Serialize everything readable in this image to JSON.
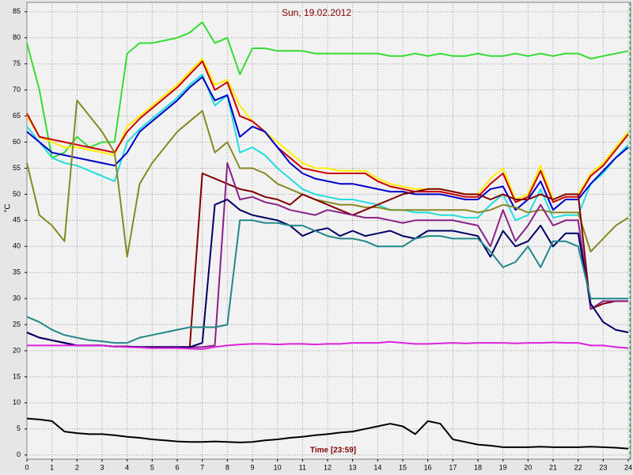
{
  "chart_data": {
    "type": "line",
    "title": "Sun, 19.02.2012",
    "x_label": "Time [23:59]",
    "y_label": "°C",
    "xlim": [
      0,
      24
    ],
    "ylim": [
      -0.8,
      86.8
    ],
    "xticks": [
      0,
      1,
      2,
      3,
      4,
      5,
      6,
      7,
      8,
      9,
      10,
      11,
      12,
      13,
      14,
      15,
      16,
      17,
      18,
      19,
      20,
      21,
      22,
      23,
      24
    ],
    "yticks": [
      0,
      5,
      10,
      15,
      20,
      25,
      30,
      35,
      40,
      45,
      50,
      55,
      60,
      65,
      70,
      75,
      80,
      85
    ],
    "grid": true,
    "x": [
      0,
      0.5,
      1,
      1.5,
      2,
      2.5,
      3,
      3.5,
      4,
      4.5,
      5,
      5.5,
      6,
      6.5,
      7,
      7.5,
      8,
      8.5,
      9,
      9.5,
      10,
      10.5,
      11,
      11.5,
      12,
      12.5,
      13,
      13.5,
      14,
      14.5,
      15,
      15.5,
      16,
      16.5,
      17,
      17.5,
      18,
      18.5,
      19,
      19.5,
      20,
      20.5,
      21,
      21.5,
      22,
      22.5,
      23,
      23.5,
      24
    ],
    "series": [
      {
        "color": "#33dd33",
        "values": [
          79,
          70,
          57,
          58,
          61,
          59,
          60,
          60,
          77,
          79,
          79,
          79.5,
          80,
          81,
          83,
          79,
          80,
          73,
          78,
          78,
          77.5,
          77.5,
          77.5,
          77,
          77,
          77,
          77,
          77,
          77,
          76.5,
          76.5,
          77,
          76.5,
          77,
          76.5,
          76.5,
          77,
          76.5,
          76.5,
          77,
          76.5,
          77,
          76.5,
          77,
          77,
          76,
          76.5,
          77,
          77.5
        ]
      },
      {
        "color": "#ffee00",
        "values": [
          65,
          61,
          60,
          59,
          59,
          58.5,
          58,
          57.5,
          63,
          65,
          67,
          69,
          71,
          73.5,
          76,
          71,
          72,
          67,
          64,
          62,
          60,
          58,
          56,
          55,
          55,
          54.5,
          54.5,
          54.5,
          53,
          52,
          51.5,
          51,
          51,
          51,
          50.5,
          50,
          50,
          53,
          55,
          49,
          50,
          55.5,
          49,
          50,
          50,
          54,
          56,
          59,
          62
        ]
      },
      {
        "color": "#cc0000",
        "values": [
          65.5,
          61,
          60.5,
          60,
          59.5,
          59,
          58.5,
          58,
          62,
          64.5,
          66.5,
          68.5,
          70.5,
          73,
          75.5,
          70,
          71.5,
          65,
          64,
          62,
          59,
          57,
          55,
          54.5,
          54,
          54,
          54,
          54,
          52.5,
          51.5,
          51,
          50.5,
          50.5,
          50.5,
          50,
          49.5,
          49.5,
          52,
          54,
          48.5,
          49.5,
          54.5,
          48.5,
          49.5,
          49.5,
          53.5,
          55.5,
          58.5,
          61.5
        ]
      },
      {
        "color": "#22dddd",
        "values": [
          63,
          60,
          57,
          56,
          55.5,
          54.5,
          53.5,
          52.5,
          60,
          62.5,
          64.5,
          66.5,
          68.5,
          71,
          73,
          67,
          69,
          58,
          59,
          57.5,
          55,
          53,
          51,
          50,
          49.5,
          49,
          49,
          48.5,
          48,
          47,
          47,
          46.5,
          46.5,
          46,
          46,
          45.5,
          45.5,
          48,
          50,
          45,
          46,
          51,
          45.5,
          46,
          46,
          52,
          54,
          57,
          59.5
        ]
      },
      {
        "color": "#0000cc",
        "values": [
          62,
          60,
          58,
          57.5,
          57,
          56.5,
          56,
          55.5,
          58,
          62,
          64,
          66,
          68,
          70.5,
          72.5,
          68,
          69,
          61,
          63,
          62,
          59,
          56,
          54,
          53,
          52.5,
          52,
          52,
          51.5,
          51,
          50.5,
          50.5,
          50,
          50,
          50,
          49.5,
          49,
          49,
          51,
          51.5,
          47,
          49,
          52.5,
          47,
          49,
          49,
          52,
          54.5,
          57,
          59
        ]
      },
      {
        "color": "#888822",
        "values": [
          56,
          46,
          44,
          41,
          68,
          65,
          62,
          58,
          38,
          52,
          56,
          59,
          62,
          64,
          66,
          58,
          60,
          55,
          55,
          54,
          52,
          51,
          50,
          49,
          48.5,
          48,
          48,
          47.5,
          47.5,
          47,
          47,
          47,
          47,
          47,
          47,
          47,
          46.5,
          47,
          48,
          47.5,
          46.5,
          47,
          46.5,
          46.5,
          46.5,
          39,
          41.5,
          44,
          45.5
        ]
      },
      {
        "color": "#800000",
        "values": [
          23.5,
          22.5,
          22,
          21.5,
          21,
          21,
          21,
          20.8,
          20.8,
          20.7,
          20.7,
          20.7,
          20.7,
          20.7,
          54,
          53,
          52,
          51,
          50.5,
          49.5,
          49,
          48,
          50,
          49,
          48,
          47,
          46,
          47,
          48,
          49,
          50,
          50.5,
          51,
          51,
          50.5,
          50,
          50,
          49,
          50,
          49,
          49,
          50,
          49,
          50,
          50,
          28,
          29,
          29.5,
          29.5
        ]
      },
      {
        "color": "#882288",
        "values": [
          23.5,
          22.5,
          22,
          21.5,
          21,
          21,
          21,
          20.8,
          20.8,
          20.7,
          20.7,
          20.7,
          20.7,
          20.7,
          20.7,
          21,
          56,
          49,
          49.5,
          48.5,
          48,
          47,
          46.5,
          46,
          47,
          46.5,
          46,
          45.5,
          45.5,
          45,
          44.5,
          45,
          45,
          45,
          45,
          44.5,
          44,
          40,
          47,
          41,
          44,
          48,
          44,
          45,
          45,
          28,
          29.5,
          29.5,
          29.5
        ]
      },
      {
        "color": "#000066",
        "values": [
          23.5,
          22.5,
          22,
          21.5,
          21,
          21,
          21,
          20.8,
          20.8,
          20.7,
          20.7,
          20.7,
          20.7,
          20.7,
          21.5,
          48,
          49,
          47,
          46,
          45.5,
          45,
          44,
          42,
          43,
          43.5,
          42,
          43,
          42,
          42.5,
          43,
          42,
          41.5,
          43,
          43,
          43,
          42.5,
          42,
          38,
          43,
          40,
          41,
          44,
          40,
          42.5,
          42.5,
          29,
          25.5,
          24,
          23.5
        ]
      },
      {
        "color": "#228888",
        "values": [
          26.5,
          25.5,
          24,
          23,
          22.5,
          22,
          21.8,
          21.5,
          21.5,
          22.5,
          23,
          23.5,
          24,
          24.5,
          24.5,
          24.5,
          25,
          45,
          45,
          44.5,
          44.5,
          44,
          44,
          43,
          42,
          41.5,
          41.5,
          41,
          40,
          40,
          40,
          41.5,
          42,
          42,
          41.5,
          41.5,
          41.5,
          39,
          36,
          37,
          40,
          36,
          41,
          41,
          40,
          30,
          30,
          30,
          30
        ]
      },
      {
        "color": "#dd22dd",
        "values": [
          21,
          21,
          21,
          21,
          21,
          21,
          21,
          20.8,
          20.7,
          20.6,
          20.5,
          20.5,
          20.5,
          20.4,
          20.3,
          20.7,
          21,
          21.2,
          21.3,
          21.3,
          21.2,
          21.3,
          21.3,
          21.2,
          21.3,
          21.3,
          21.5,
          21.5,
          21.5,
          21.7,
          21.5,
          21.3,
          21.3,
          21.4,
          21.5,
          21.4,
          21.5,
          21.5,
          21.5,
          21.4,
          21.5,
          21.5,
          21.6,
          21.5,
          21.5,
          21,
          21,
          20.7,
          20.5
        ]
      },
      {
        "color": "#000000",
        "values": [
          7,
          6.8,
          6.5,
          4.5,
          4.2,
          4,
          4,
          3.8,
          3.5,
          3.3,
          3,
          2.8,
          2.6,
          2.5,
          2.5,
          2.6,
          2.5,
          2.4,
          2.5,
          2.8,
          3,
          3.3,
          3.5,
          3.8,
          4,
          4.3,
          4.5,
          5,
          5.5,
          6,
          5.5,
          4,
          6.5,
          6,
          3,
          2.5,
          2,
          1.8,
          1.5,
          1.5,
          1.5,
          1.6,
          1.5,
          1.5,
          1.5,
          1.6,
          1.5,
          1.4,
          1.2
        ]
      }
    ]
  }
}
